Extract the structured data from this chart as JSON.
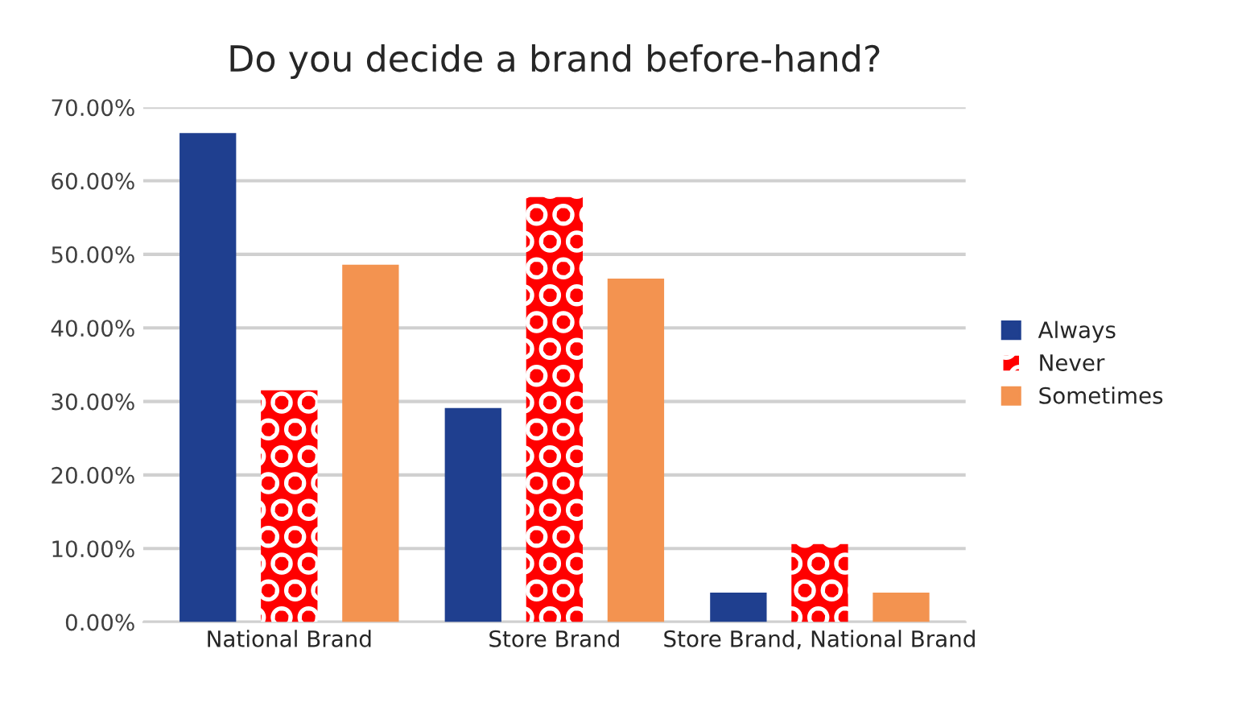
{
  "chart_data": {
    "type": "bar",
    "title": "Do you decide a brand before-hand?",
    "categories": [
      "National Brand",
      "Store Brand",
      "Store Brand, National Brand"
    ],
    "series": [
      {
        "name": "Always",
        "color": "#1f3f8f",
        "values": [
          66.5,
          29.1,
          4.0
        ]
      },
      {
        "name": "Never",
        "color": "#ff0000",
        "values": [
          31.5,
          57.8,
          10.6
        ]
      },
      {
        "name": "Sometimes",
        "color": "#f39350",
        "values": [
          48.6,
          46.7,
          4.0
        ]
      }
    ],
    "ylim": [
      0,
      70
    ],
    "yticks": [
      {
        "value": 0,
        "label": "0.00%"
      },
      {
        "value": 10,
        "label": "10.00%"
      },
      {
        "value": 20,
        "label": "20.00%"
      },
      {
        "value": 30,
        "label": "30.00%"
      },
      {
        "value": 40,
        "label": "40.00%"
      },
      {
        "value": 50,
        "label": "50.00%"
      },
      {
        "value": 60,
        "label": "60.00%"
      },
      {
        "value": 70,
        "label": "70.00%"
      }
    ],
    "grid": "y",
    "legend": "right"
  }
}
